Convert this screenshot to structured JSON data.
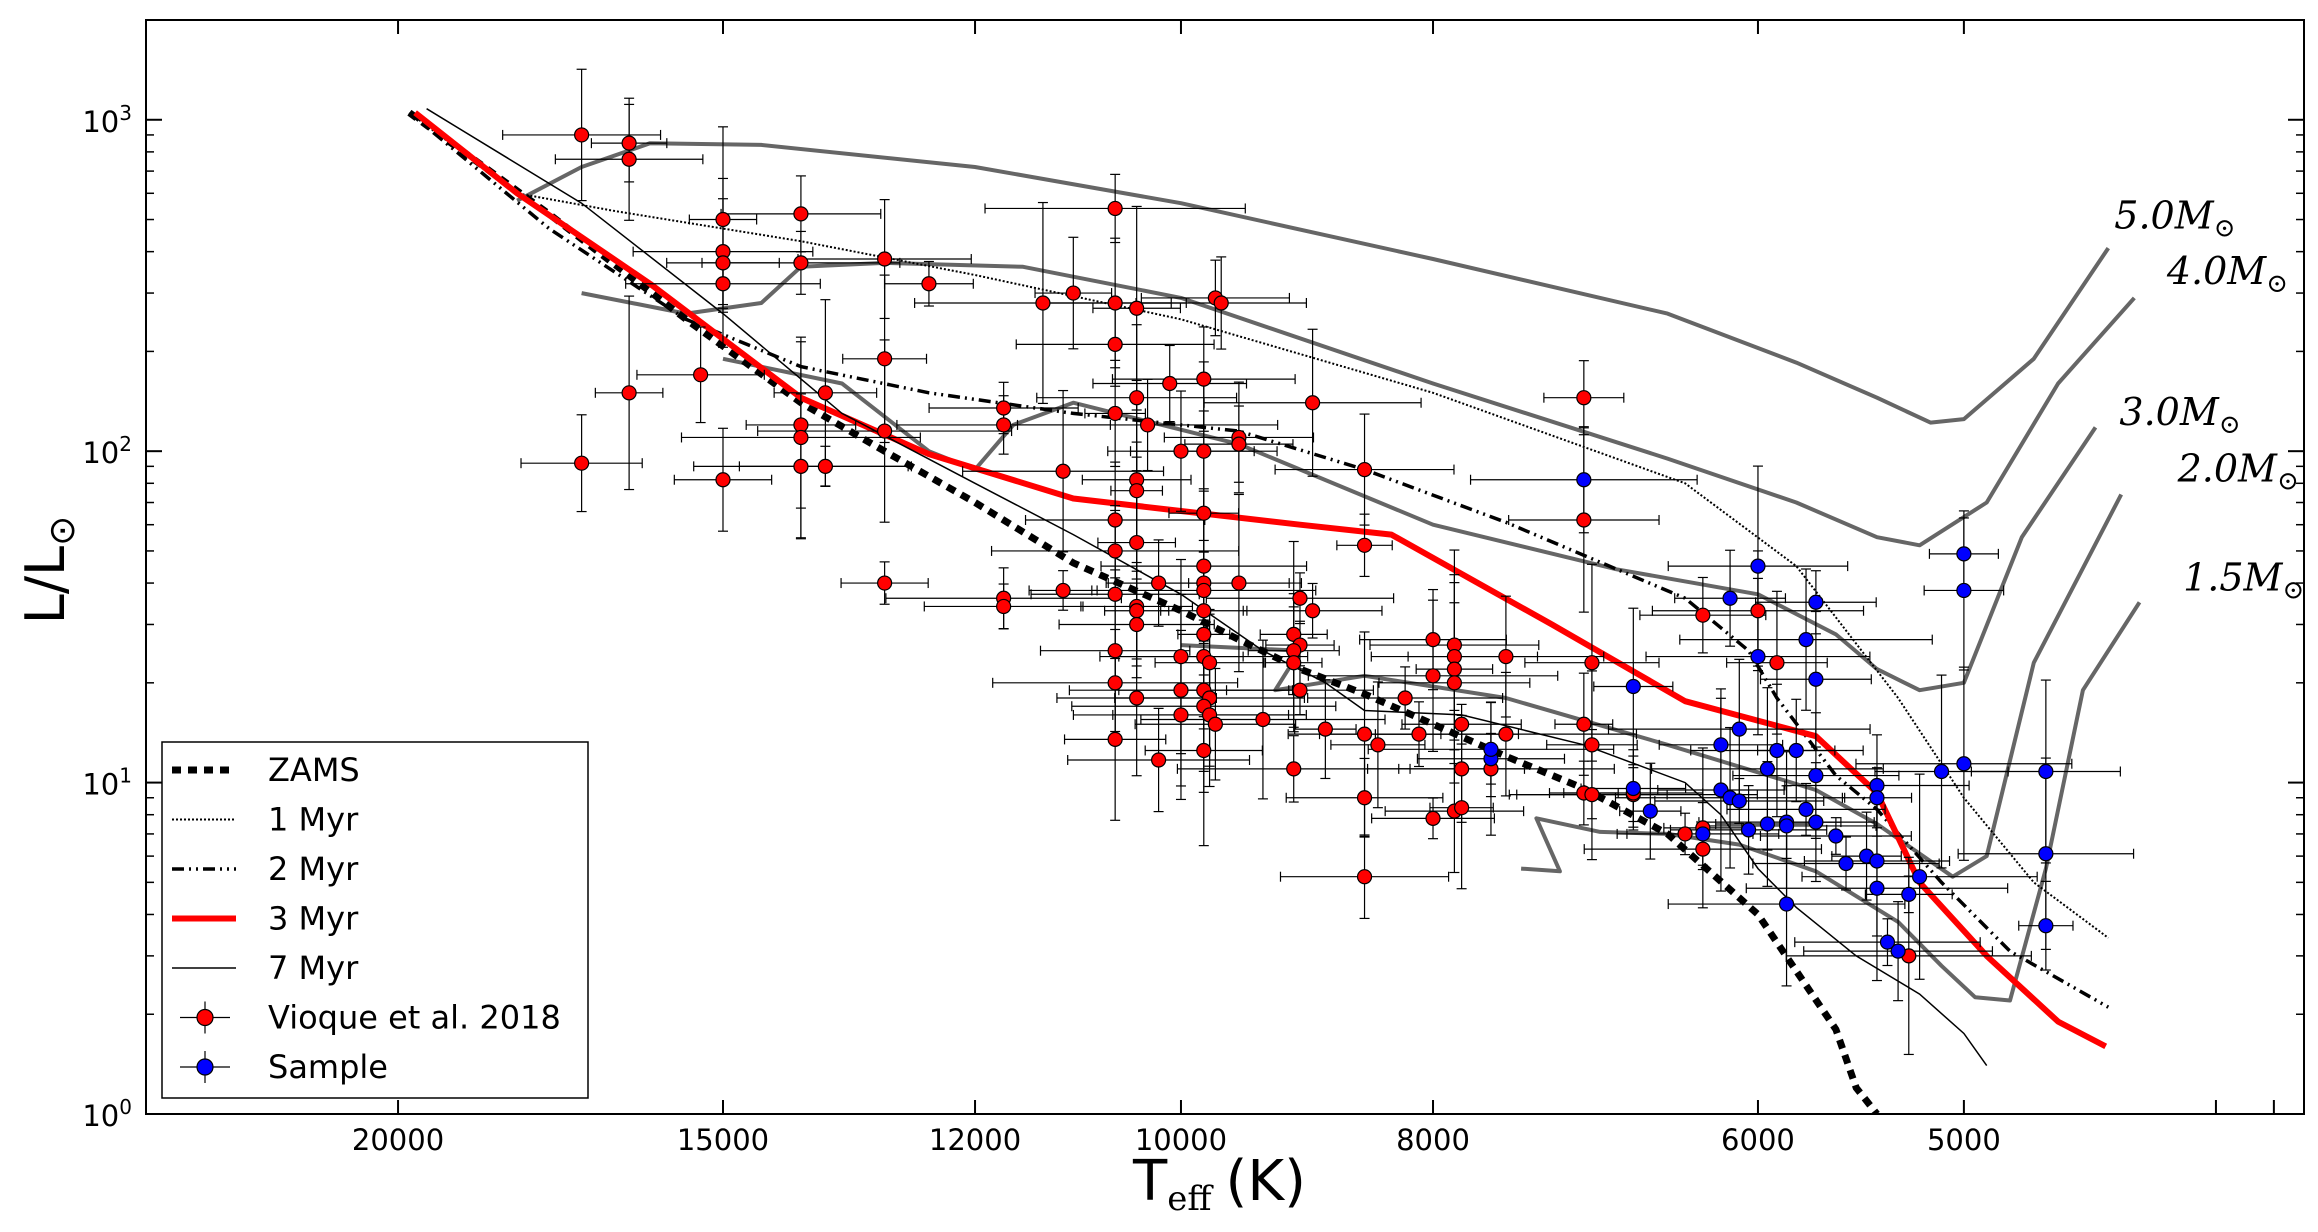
{
  "chart_data": {
    "type": "scatter",
    "title": "",
    "xlabel_main": "T",
    "xlabel_sub": "eff",
    "xlabel_unit": "(K)",
    "ylabel": "L/L",
    "ylabel_sub": "⊙",
    "x_scale": "log",
    "y_scale": "log",
    "x_reversed": true,
    "xlim": [
      25000,
      3700
    ],
    "ylim": [
      1,
      2000
    ],
    "x_ticks": [
      20000,
      15000,
      12000,
      10000,
      8000,
      6000,
      5000
    ],
    "x_tick_labels": [
      "20000",
      "15000",
      "12000",
      "10000",
      "8000",
      "6000",
      "5000"
    ],
    "y_tick_labels": [
      {
        "value": 1,
        "base": "10",
        "exp": "0"
      },
      {
        "value": 10,
        "base": "10",
        "exp": "1"
      },
      {
        "value": 100,
        "base": "10",
        "exp": "2"
      },
      {
        "value": 1000,
        "base": "10",
        "exp": "3"
      }
    ],
    "legend_position": "lower-left",
    "legend": [
      {
        "key": "zams",
        "label": "ZAMS"
      },
      {
        "key": "myr1",
        "label": "1 Myr"
      },
      {
        "key": "myr2",
        "label": "2 Myr"
      },
      {
        "key": "myr3",
        "label": "3 Myr"
      },
      {
        "key": "myr7",
        "label": "7 Myr"
      },
      {
        "key": "vioque",
        "label": "Vioque et al. 2018"
      },
      {
        "key": "sample",
        "label": "Sample"
      }
    ],
    "colors": {
      "vioque": "#ff0000",
      "sample": "#0000ff",
      "track": "#666666",
      "isochrone3": "#ff0000",
      "line": "#000000"
    },
    "tracks": [
      {
        "label": "5.0",
        "points": [
          [
            18000,
            570
          ],
          [
            17000,
            720
          ],
          [
            16000,
            850
          ],
          [
            14500,
            840
          ],
          [
            12000,
            720
          ],
          [
            10000,
            560
          ],
          [
            8000,
            380
          ],
          [
            6500,
            260
          ],
          [
            5800,
            185
          ],
          [
            5400,
            145
          ],
          [
            5150,
            122
          ],
          [
            5000,
            125
          ],
          [
            4700,
            190
          ],
          [
            4400,
            410
          ]
        ]
      },
      {
        "label": "4.0",
        "points": [
          [
            17000,
            300
          ],
          [
            15500,
            260
          ],
          [
            14500,
            280
          ],
          [
            14000,
            360
          ],
          [
            13000,
            370
          ],
          [
            11500,
            360
          ],
          [
            10000,
            290
          ],
          [
            8000,
            160
          ],
          [
            6500,
            95
          ],
          [
            5800,
            70
          ],
          [
            5400,
            55
          ],
          [
            5200,
            52
          ],
          [
            4900,
            70
          ],
          [
            4600,
            160
          ],
          [
            4300,
            290
          ]
        ]
      },
      {
        "label": "3.0",
        "points": [
          [
            15000,
            190
          ],
          [
            13500,
            160
          ],
          [
            12500,
            100
          ],
          [
            12000,
            88
          ],
          [
            11600,
            120
          ],
          [
            11000,
            140
          ],
          [
            9500,
            105
          ],
          [
            8000,
            60
          ],
          [
            6800,
            44
          ],
          [
            6000,
            37
          ],
          [
            5600,
            28
          ],
          [
            5400,
            22
          ],
          [
            5200,
            19
          ],
          [
            5000,
            20
          ],
          [
            4750,
            55
          ],
          [
            4450,
            118
          ]
        ]
      },
      {
        "label": "2.0",
        "points": [
          [
            10000,
            26
          ],
          [
            9000,
            25
          ],
          [
            9200,
            19
          ],
          [
            8500,
            21
          ],
          [
            7500,
            18
          ],
          [
            6500,
            13
          ],
          [
            5700,
            9.5
          ],
          [
            5400,
            7.5
          ],
          [
            5200,
            6.1
          ],
          [
            5050,
            5.2
          ],
          [
            4900,
            6.0
          ],
          [
            4700,
            23
          ],
          [
            4350,
            74
          ]
        ]
      },
      {
        "label": "1.5",
        "points": [
          [
            7400,
            5.5
          ],
          [
            7150,
            5.4
          ],
          [
            7300,
            7.8
          ],
          [
            6900,
            7.1
          ],
          [
            6500,
            7
          ],
          [
            6100,
            6.5
          ],
          [
            5700,
            5.4
          ],
          [
            5300,
            3.8
          ],
          [
            5100,
            2.8
          ],
          [
            4950,
            2.25
          ],
          [
            4800,
            2.2
          ],
          [
            4650,
            5.5
          ],
          [
            4500,
            19
          ],
          [
            4280,
            35
          ]
        ]
      }
    ],
    "mass_labels": [
      {
        "text": "5.0M",
        "sub": "⊙",
        "anchor": [
          4400,
          470
        ]
      },
      {
        "text": "4.0M",
        "sub": "⊙",
        "anchor": [
          4200,
          320
        ]
      },
      {
        "text": "3.0M",
        "sub": "⊙",
        "anchor": [
          4380,
          120
        ]
      },
      {
        "text": "2.0M",
        "sub": "⊙",
        "anchor": [
          4160,
          81
        ]
      },
      {
        "text": "1.5M",
        "sub": "⊙",
        "anchor": [
          4140,
          38
        ]
      }
    ],
    "series_lines": [
      {
        "key": "zams",
        "points": [
          [
            19800,
            1050
          ],
          [
            17500,
            520
          ],
          [
            15500,
            250
          ],
          [
            14000,
            140
          ],
          [
            13000,
            100
          ],
          [
            12000,
            70
          ],
          [
            11000,
            46
          ],
          [
            10000,
            33
          ],
          [
            9500,
            27
          ],
          [
            9000,
            22
          ],
          [
            8500,
            18.5
          ],
          [
            8000,
            15
          ],
          [
            7500,
            12
          ],
          [
            7000,
            9.6
          ],
          [
            6500,
            7
          ],
          [
            6000,
            4
          ],
          [
            5600,
            1.8
          ],
          [
            5500,
            1.2
          ],
          [
            5400,
            1
          ]
        ]
      },
      {
        "key": "myr1",
        "points": [
          [
            19800,
            1050
          ],
          [
            18000,
            600
          ],
          [
            16500,
            530
          ],
          [
            14000,
            430
          ],
          [
            12000,
            340
          ],
          [
            10000,
            250
          ],
          [
            8000,
            150
          ],
          [
            6400,
            80
          ],
          [
            5800,
            45
          ],
          [
            5300,
            18
          ],
          [
            5000,
            9
          ],
          [
            4700,
            5
          ],
          [
            4400,
            3.4
          ]
        ]
      },
      {
        "key": "myr2",
        "points": [
          [
            19800,
            1050
          ],
          [
            17500,
            470
          ],
          [
            15500,
            250
          ],
          [
            14000,
            180
          ],
          [
            12500,
            150
          ],
          [
            11000,
            130
          ],
          [
            9500,
            115
          ],
          [
            8500,
            88
          ],
          [
            7500,
            61
          ],
          [
            6400,
            36
          ],
          [
            6050,
            25
          ],
          [
            5900,
            18
          ],
          [
            5600,
            10.5
          ],
          [
            5400,
            8.3
          ],
          [
            5100,
            5
          ],
          [
            4800,
            3.1
          ],
          [
            4400,
            2.1
          ]
        ]
      },
      {
        "key": "myr3",
        "points": [
          [
            19700,
            1050
          ],
          [
            18000,
            600
          ],
          [
            16000,
            320
          ],
          [
            14000,
            145
          ],
          [
            12500,
            98
          ],
          [
            11000,
            72
          ],
          [
            10000,
            66
          ],
          [
            9000,
            60
          ],
          [
            8300,
            56
          ],
          [
            7200,
            30
          ],
          [
            6400,
            17.6
          ],
          [
            5700,
            13.8
          ],
          [
            5400,
            9.3
          ],
          [
            5200,
            5
          ],
          [
            4900,
            3
          ],
          [
            4600,
            1.9
          ],
          [
            4410,
            1.6
          ]
        ]
      },
      {
        "key": "myr7",
        "points": [
          [
            19500,
            1080
          ],
          [
            17000,
            560
          ],
          [
            15000,
            260
          ],
          [
            13500,
            130
          ],
          [
            12000,
            80
          ],
          [
            11000,
            56
          ],
          [
            10000,
            37
          ],
          [
            9300,
            25
          ],
          [
            8800,
            20
          ],
          [
            8500,
            16.5
          ],
          [
            7800,
            16
          ],
          [
            7000,
            13
          ],
          [
            6400,
            10
          ],
          [
            6200,
            8
          ],
          [
            6000,
            5.5
          ],
          [
            5800,
            4.2
          ],
          [
            5500,
            3
          ],
          [
            5200,
            2.3
          ],
          [
            5000,
            1.75
          ],
          [
            4900,
            1.4
          ]
        ]
      }
    ],
    "vioque_points": [
      [
        17000,
        900
      ],
      [
        16300,
        850
      ],
      [
        16300,
        760
      ],
      [
        15000,
        500
      ],
      [
        15000,
        400
      ],
      [
        15000,
        370
      ],
      [
        15000,
        320
      ],
      [
        14000,
        520
      ],
      [
        14000,
        370
      ],
      [
        13000,
        380
      ],
      [
        12500,
        320
      ],
      [
        11300,
        280
      ],
      [
        11000,
        300
      ],
      [
        10600,
        540
      ],
      [
        10600,
        280
      ],
      [
        10600,
        210
      ],
      [
        10400,
        270
      ],
      [
        9700,
        290
      ],
      [
        9650,
        280
      ],
      [
        13000,
        190
      ],
      [
        15300,
        170
      ],
      [
        16300,
        150
      ],
      [
        13700,
        150
      ],
      [
        10100,
        160
      ],
      [
        9800,
        165
      ],
      [
        8900,
        140
      ],
      [
        7000,
        145
      ],
      [
        11700,
        135
      ],
      [
        10600,
        130
      ],
      [
        10400,
        145
      ],
      [
        10300,
        120
      ],
      [
        10000,
        100
      ],
      [
        9800,
        100
      ],
      [
        9500,
        110
      ],
      [
        9500,
        105
      ],
      [
        11700,
        120
      ],
      [
        14000,
        120
      ],
      [
        14000,
        110
      ],
      [
        13000,
        115
      ],
      [
        14000,
        90
      ],
      [
        13700,
        90
      ],
      [
        17000,
        92
      ],
      [
        15000,
        82
      ],
      [
        11100,
        87
      ],
      [
        10400,
        82
      ],
      [
        10400,
        76
      ],
      [
        8500,
        88
      ],
      [
        9800,
        65
      ],
      [
        7000,
        62
      ],
      [
        10600,
        62
      ],
      [
        10400,
        53
      ],
      [
        10600,
        50
      ],
      [
        8500,
        52
      ],
      [
        9800,
        45
      ],
      [
        9800,
        40
      ],
      [
        9500,
        40
      ],
      [
        13000,
        40
      ],
      [
        11100,
        38
      ],
      [
        10600,
        37
      ],
      [
        11700,
        36
      ],
      [
        11700,
        34
      ],
      [
        10400,
        34
      ],
      [
        10400,
        33
      ],
      [
        10200,
        40
      ],
      [
        9800,
        38
      ],
      [
        9800,
        33
      ],
      [
        9000,
        36
      ],
      [
        8900,
        33
      ],
      [
        10400,
        30
      ],
      [
        9800,
        28
      ],
      [
        10600,
        25
      ],
      [
        10000,
        24
      ],
      [
        9800,
        24
      ],
      [
        9750,
        23
      ],
      [
        9050,
        28
      ],
      [
        9000,
        26
      ],
      [
        9050,
        25
      ],
      [
        9050,
        23
      ],
      [
        8000,
        27
      ],
      [
        7850,
        26
      ],
      [
        7850,
        24
      ],
      [
        7850,
        22
      ],
      [
        7500,
        24
      ],
      [
        8000,
        21
      ],
      [
        7850,
        20
      ],
      [
        10600,
        20
      ],
      [
        10400,
        18
      ],
      [
        10000,
        19
      ],
      [
        9800,
        19
      ],
      [
        9750,
        18
      ],
      [
        9000,
        19
      ],
      [
        9800,
        17
      ],
      [
        9750,
        16
      ],
      [
        10000,
        16
      ],
      [
        9700,
        15
      ],
      [
        9300,
        15.5
      ],
      [
        8800,
        14.5
      ],
      [
        8500,
        14
      ],
      [
        8200,
        18
      ],
      [
        8100,
        14
      ],
      [
        8400,
        13
      ],
      [
        7800,
        15
      ],
      [
        7500,
        14
      ],
      [
        7000,
        15
      ],
      [
        6950,
        13
      ],
      [
        10600,
        13.5
      ],
      [
        9800,
        12.5
      ],
      [
        10200,
        11.7
      ],
      [
        9050,
        11
      ],
      [
        7800,
        11
      ],
      [
        7600,
        11
      ],
      [
        7000,
        9.3
      ],
      [
        8500,
        9
      ],
      [
        7850,
        8.2
      ],
      [
        8000,
        7.8
      ],
      [
        7800,
        8.4
      ],
      [
        6950,
        9.2
      ],
      [
        6700,
        9.2
      ],
      [
        6700,
        9.3
      ],
      [
        6400,
        7
      ],
      [
        6300,
        7.3
      ],
      [
        6300,
        6.3
      ],
      [
        8500,
        5.2
      ],
      [
        6300,
        32
      ],
      [
        6000,
        33
      ],
      [
        5900,
        23
      ],
      [
        5250,
        3
      ],
      [
        6950,
        23
      ]
    ],
    "sample_points": [
      [
        7000,
        82
      ],
      [
        5000,
        49
      ],
      [
        5000,
        38
      ],
      [
        6000,
        45
      ],
      [
        6150,
        36
      ],
      [
        5700,
        35
      ],
      [
        5750,
        27
      ],
      [
        6000,
        24
      ],
      [
        5700,
        20.5
      ],
      [
        6700,
        19.5
      ],
      [
        6100,
        14.5
      ],
      [
        6200,
        13
      ],
      [
        5900,
        12.5
      ],
      [
        5800,
        12.5
      ],
      [
        5950,
        11
      ],
      [
        5700,
        10.5
      ],
      [
        5400,
        9.8
      ],
      [
        5400,
        9
      ],
      [
        5100,
        10.8
      ],
      [
        5000,
        11.4
      ],
      [
        4650,
        10.8
      ],
      [
        7600,
        11.8
      ],
      [
        7600,
        12.6
      ],
      [
        6700,
        9.6
      ],
      [
        6600,
        8.2
      ],
      [
        6200,
        9.5
      ],
      [
        6150,
        9
      ],
      [
        6100,
        8.8
      ],
      [
        6300,
        7
      ],
      [
        6050,
        7.2
      ],
      [
        5950,
        7.5
      ],
      [
        5850,
        7.6
      ],
      [
        5850,
        7.4
      ],
      [
        5750,
        8.3
      ],
      [
        5700,
        7.6
      ],
      [
        5600,
        6.9
      ],
      [
        5550,
        5.7
      ],
      [
        5450,
        6
      ],
      [
        5400,
        5.8
      ],
      [
        5400,
        4.8
      ],
      [
        5250,
        4.6
      ],
      [
        5200,
        5.2
      ],
      [
        5850,
        4.3
      ],
      [
        4650,
        6.1
      ],
      [
        4650,
        3.7
      ],
      [
        5350,
        3.3
      ],
      [
        5300,
        3.1
      ]
    ]
  }
}
